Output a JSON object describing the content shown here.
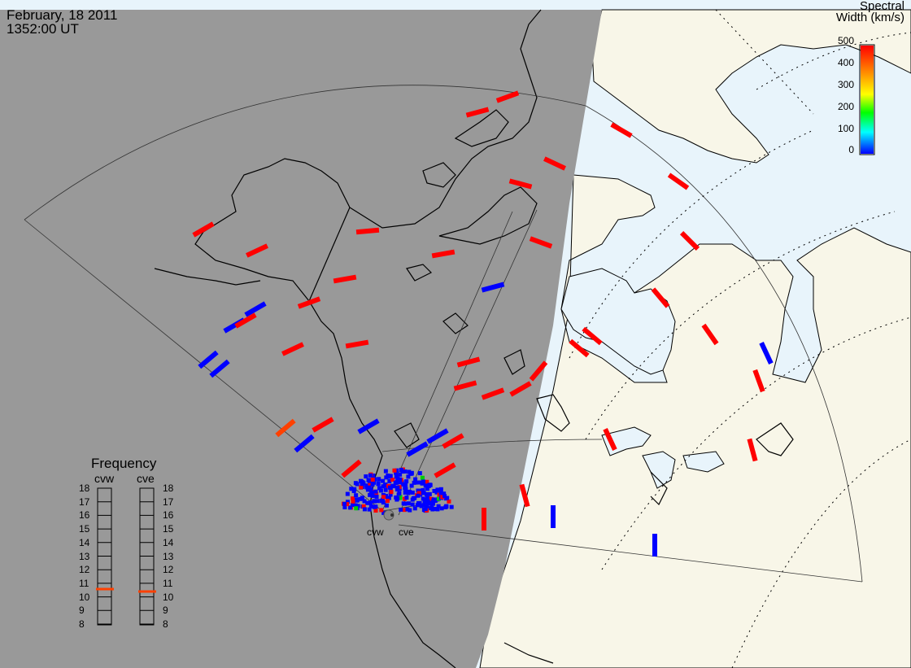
{
  "header": {
    "date": "February, 18 2011",
    "time": "1352:00 UT"
  },
  "colorbar": {
    "title_line1": "Spectral",
    "title_line2": "Width (km/s)",
    "ticks": [
      "500",
      "400",
      "300",
      "200",
      "100",
      "0"
    ],
    "colors": [
      "#ff0000",
      "#ff8c00",
      "#ffff00",
      "#00ff00",
      "#00ffff",
      "#0000ff"
    ]
  },
  "frequency": {
    "title": "Frequency",
    "radars": [
      "cvw",
      "cve"
    ],
    "ticks": [
      "18",
      "17",
      "16",
      "15",
      "14",
      "13",
      "12",
      "11",
      "10",
      "9",
      "8"
    ],
    "values_mhz": [
      10.9,
      10.7
    ],
    "marker_color": "#ff4000"
  },
  "sites": {
    "west": "cvw",
    "east": "cve"
  },
  "colors": {
    "night": "#999999",
    "land_day": "#f8f6e8",
    "water_day": "#e8f4fb",
    "coast": "#000000"
  }
}
